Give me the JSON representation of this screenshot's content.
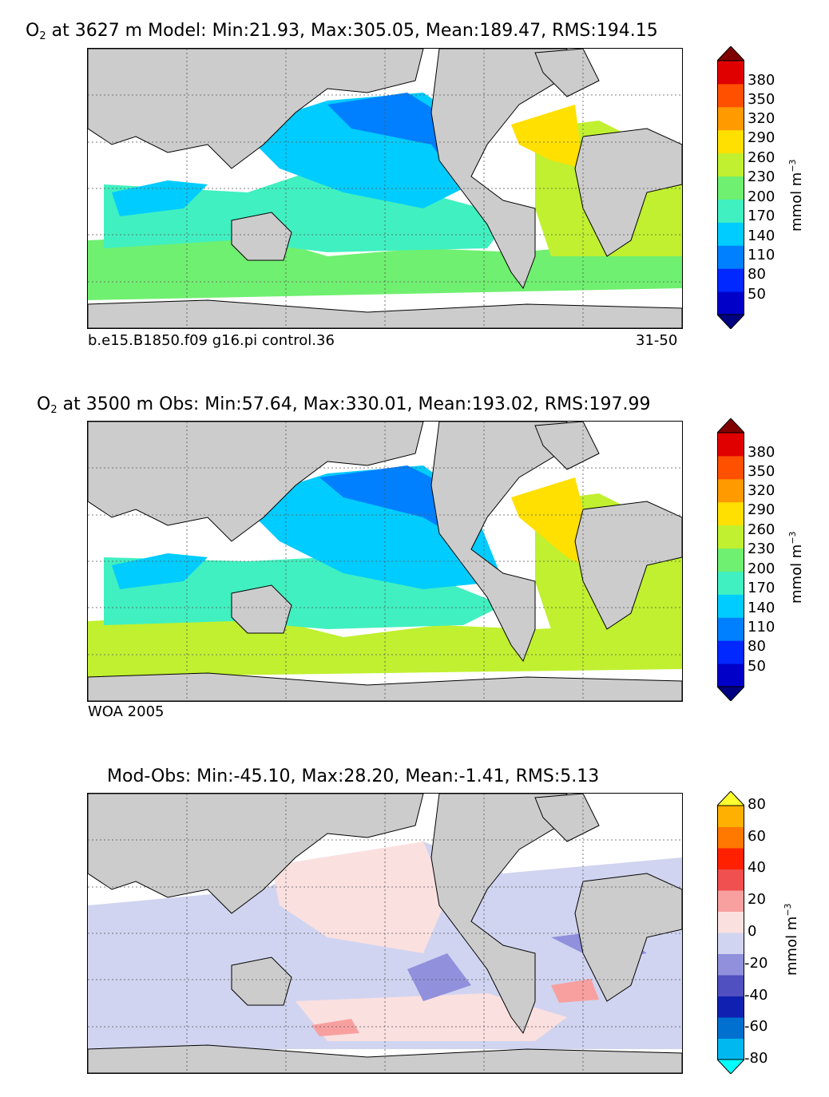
{
  "panels": [
    {
      "title_prefix": "O",
      "title_sub": "2",
      "title_rest": " at 3627 m Model: Min:21.93, Max:305.05, Mean:189.47, RMS:194.15",
      "caption_left": "b.e15.B1850.f09 g16.pi control.36",
      "caption_right": "31-50"
    },
    {
      "title_prefix": "O",
      "title_sub": "2",
      "title_rest": " at 3500 m Obs: Min:57.64, Max:330.01, Mean:193.02, RMS:197.99",
      "caption_left": "WOA 2005",
      "caption_right": ""
    },
    {
      "title_prefix": "",
      "title_sub": "",
      "title_rest": "Mod-Obs: Min:-45.10, Max:28.20, Mean:-1.41, RMS:5.13",
      "caption_left": "",
      "caption_right": ""
    }
  ],
  "colorbars": {
    "o2": {
      "ticks": [
        "380",
        "350",
        "320",
        "290",
        "260",
        "230",
        "200",
        "170",
        "140",
        "110",
        "80",
        "50"
      ],
      "colors": [
        "#000080",
        "#0000c8",
        "#0028ff",
        "#0080ff",
        "#00ccff",
        "#40f0c0",
        "#70f070",
        "#c0f030",
        "#ffe000",
        "#ff9a00",
        "#ff5000",
        "#e00000",
        "#800000"
      ],
      "units_main": "mmol m",
      "units_exp": "−3"
    },
    "diff": {
      "ticks": [
        "80",
        "60",
        "40",
        "20",
        "0",
        "-20",
        "-40",
        "-60",
        "-80"
      ],
      "colors": [
        "#00ffff",
        "#00b8f0",
        "#0070d0",
        "#1020b0",
        "#5050c0",
        "#9090dd",
        "#d0d4f0",
        "#fbe0e0",
        "#f8a0a0",
        "#f05050",
        "#ff2000",
        "#ff7800",
        "#ffb000",
        "#ffff30"
      ],
      "units_main": "mmol m",
      "units_exp": "−3"
    }
  },
  "colors": {
    "land": "#cccccc",
    "nodata": "#ffffff",
    "grid": "#555555"
  }
}
